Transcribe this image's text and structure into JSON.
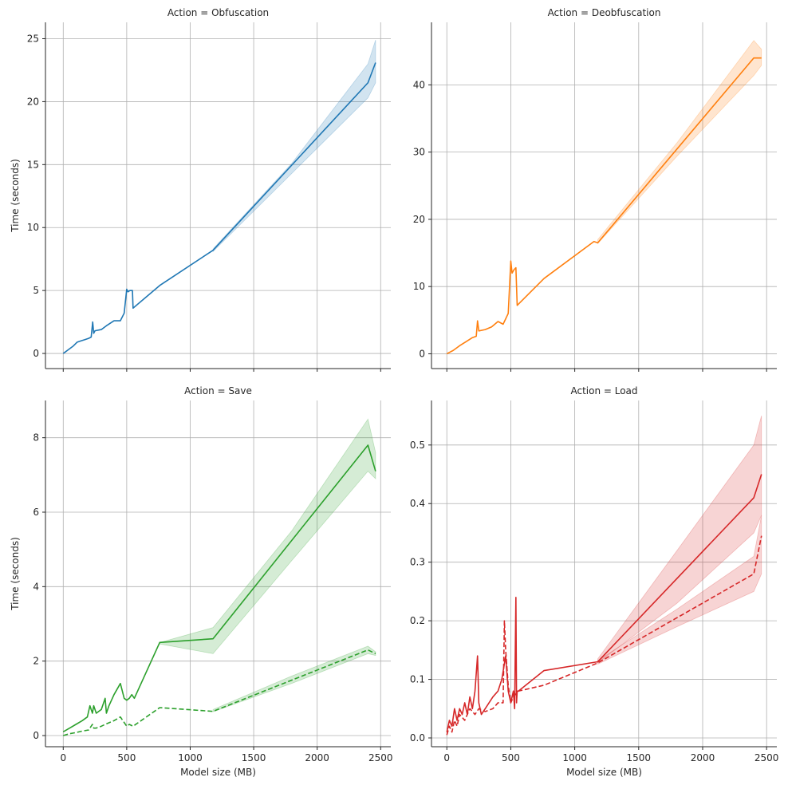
{
  "chart_data": [
    {
      "type": "line",
      "title": "Action = Obfuscation",
      "xlabel": "",
      "ylabel": "Time (seconds)",
      "color": "#1f77b4",
      "xlim": [
        -140,
        2580
      ],
      "ylim": [
        -1.2,
        26.3
      ],
      "xticks": [
        0,
        500,
        1000,
        1500,
        2000,
        2500
      ],
      "xticklabels": [
        "",
        "",
        "",
        "",
        "",
        ""
      ],
      "yticks": [
        0,
        5,
        10,
        15,
        20,
        25
      ],
      "yticklabels": [
        "0",
        "5",
        "10",
        "15",
        "20",
        "25"
      ],
      "grid": true,
      "series": [
        {
          "name": "solid",
          "dash": false,
          "x": [
            0,
            40,
            80,
            110,
            140,
            170,
            200,
            220,
            232,
            240,
            250,
            300,
            340,
            400,
            450,
            480,
            500,
            510,
            525,
            545,
            550,
            760,
            1180,
            2400,
            2460
          ],
          "y": [
            0,
            0.3,
            0.6,
            0.9,
            1.0,
            1.1,
            1.2,
            1.3,
            2.5,
            1.6,
            1.8,
            1.9,
            2.2,
            2.6,
            2.6,
            3.2,
            5.1,
            4.9,
            5.0,
            5.0,
            3.6,
            5.4,
            8.2,
            21.5,
            23.1
          ],
          "band_x": [
            1180,
            1800,
            2400,
            2460
          ],
          "band_low": [
            8.1,
            14.3,
            20.3,
            21.5
          ],
          "band_high": [
            8.3,
            15.1,
            23.0,
            24.9
          ]
        }
      ]
    },
    {
      "type": "line",
      "title": "Action = Deobfuscation",
      "xlabel": "",
      "ylabel": "",
      "color": "#ff7f0e",
      "xlim": [
        -120,
        2580
      ],
      "ylim": [
        -2.2,
        49.3
      ],
      "xticks": [
        0,
        500,
        1000,
        1500,
        2000,
        2500
      ],
      "xticklabels": [
        "",
        "",
        "",
        "",
        "",
        ""
      ],
      "yticks": [
        0,
        10,
        20,
        30,
        40
      ],
      "yticklabels": [
        "0",
        "10",
        "20",
        "30",
        "40"
      ],
      "grid": true,
      "series": [
        {
          "name": "solid",
          "dash": false,
          "x": [
            0,
            50,
            100,
            150,
            200,
            230,
            240,
            250,
            300,
            350,
            400,
            440,
            480,
            500,
            510,
            525,
            540,
            550,
            760,
            1150,
            1180,
            2400,
            2460
          ],
          "y": [
            0,
            0.5,
            1.2,
            1.8,
            2.4,
            2.6,
            4.9,
            3.4,
            3.6,
            4.0,
            4.8,
            4.4,
            6.0,
            13.8,
            12.0,
            12.5,
            12.8,
            7.2,
            11.2,
            16.7,
            16.5,
            44.0,
            44.0
          ],
          "band_x": [
            1180,
            1800,
            2400,
            2460
          ],
          "band_low": [
            16.4,
            29.4,
            41.4,
            42.9
          ],
          "band_high": [
            17.0,
            31.4,
            46.6,
            45.3
          ]
        }
      ]
    },
    {
      "type": "line",
      "title": "Action = Save",
      "xlabel": "Model size (MB)",
      "ylabel": "Time (seconds)",
      "color": "#2ca02c",
      "xlim": [
        -140,
        2580
      ],
      "ylim": [
        -0.3,
        9.0
      ],
      "xticks": [
        0,
        500,
        1000,
        1500,
        2000,
        2500
      ],
      "xticklabels": [
        "0",
        "500",
        "1000",
        "1500",
        "2000",
        "2500"
      ],
      "yticks": [
        0,
        2,
        4,
        6,
        8
      ],
      "yticklabels": [
        "0",
        "2",
        "4",
        "6",
        "8"
      ],
      "grid": true,
      "series": [
        {
          "name": "solid",
          "dash": false,
          "x": [
            0,
            50,
            100,
            150,
            190,
            210,
            230,
            240,
            260,
            300,
            330,
            340,
            360,
            400,
            450,
            480,
            500,
            520,
            540,
            560,
            760,
            1180,
            2400,
            2460
          ],
          "y": [
            0.1,
            0.2,
            0.3,
            0.4,
            0.5,
            0.8,
            0.6,
            0.8,
            0.6,
            0.7,
            1.0,
            0.6,
            0.8,
            1.1,
            1.4,
            1.0,
            0.95,
            1.0,
            1.1,
            1.0,
            2.5,
            2.6,
            7.8,
            7.1
          ],
          "band_x": [
            760,
            1180,
            1800,
            2400,
            2460
          ],
          "band_low": [
            2.46,
            2.2,
            4.7,
            7.1,
            6.9
          ],
          "band_high": [
            2.5,
            2.9,
            5.5,
            8.5,
            7.6
          ]
        },
        {
          "name": "dashed",
          "dash": true,
          "x": [
            0,
            50,
            100,
            150,
            200,
            230,
            240,
            260,
            300,
            330,
            400,
            450,
            500,
            520,
            550,
            760,
            1180,
            2400,
            2460
          ],
          "y": [
            0.0,
            0.05,
            0.08,
            0.12,
            0.15,
            0.3,
            0.2,
            0.2,
            0.25,
            0.3,
            0.4,
            0.5,
            0.25,
            0.3,
            0.25,
            0.75,
            0.65,
            2.3,
            2.2
          ],
          "band_x": [
            1180,
            1800,
            2400,
            2460
          ],
          "band_low": [
            0.64,
            1.4,
            2.2,
            2.15
          ],
          "band_high": [
            0.7,
            1.6,
            2.4,
            2.25
          ]
        }
      ]
    },
    {
      "type": "line",
      "title": "Action = Load",
      "xlabel": "Model size (MB)",
      "ylabel": "",
      "color": "#d62728",
      "xlim": [
        -120,
        2580
      ],
      "ylim": [
        -0.015,
        0.576
      ],
      "xticks": [
        0,
        500,
        1000,
        1500,
        2000,
        2500
      ],
      "xticklabels": [
        "0",
        "500",
        "1000",
        "1500",
        "2000",
        "2500"
      ],
      "yticks": [
        0.0,
        0.1,
        0.2,
        0.3,
        0.4,
        0.5
      ],
      "yticklabels": [
        "0.0",
        "0.1",
        "0.2",
        "0.3",
        "0.4",
        "0.5"
      ],
      "grid": true,
      "series": [
        {
          "name": "solid",
          "dash": false,
          "x": [
            0,
            20,
            40,
            60,
            80,
            100,
            120,
            140,
            160,
            180,
            200,
            220,
            240,
            250,
            270,
            300,
            330,
            360,
            400,
            430,
            460,
            480,
            500,
            520,
            530,
            540,
            545,
            550,
            560,
            760,
            1180,
            2400,
            2460
          ],
          "y": [
            0.01,
            0.03,
            0.02,
            0.05,
            0.03,
            0.05,
            0.04,
            0.06,
            0.04,
            0.07,
            0.05,
            0.08,
            0.14,
            0.06,
            0.04,
            0.05,
            0.06,
            0.07,
            0.08,
            0.1,
            0.14,
            0.08,
            0.06,
            0.08,
            0.05,
            0.24,
            0.06,
            0.08,
            0.08,
            0.115,
            0.13,
            0.41,
            0.45
          ],
          "band_x": [
            1180,
            1800,
            2400,
            2460
          ],
          "band_low": [
            0.128,
            0.23,
            0.35,
            0.38
          ],
          "band_high": [
            0.135,
            0.32,
            0.5,
            0.55
          ]
        },
        {
          "name": "dashed",
          "dash": true,
          "x": [
            0,
            20,
            40,
            60,
            80,
            100,
            140,
            180,
            220,
            250,
            300,
            360,
            400,
            440,
            450,
            460,
            480,
            500,
            520,
            560,
            760,
            1180,
            2400,
            2460
          ],
          "y": [
            0.005,
            0.02,
            0.01,
            0.03,
            0.02,
            0.04,
            0.03,
            0.05,
            0.04,
            0.05,
            0.045,
            0.05,
            0.06,
            0.06,
            0.2,
            0.15,
            0.09,
            0.06,
            0.07,
            0.08,
            0.09,
            0.128,
            0.28,
            0.345
          ],
          "band_x": [
            1180,
            1800,
            2400,
            2460
          ],
          "band_low": [
            0.126,
            0.19,
            0.25,
            0.28
          ],
          "band_high": [
            0.132,
            0.22,
            0.31,
            0.38
          ]
        }
      ]
    }
  ]
}
